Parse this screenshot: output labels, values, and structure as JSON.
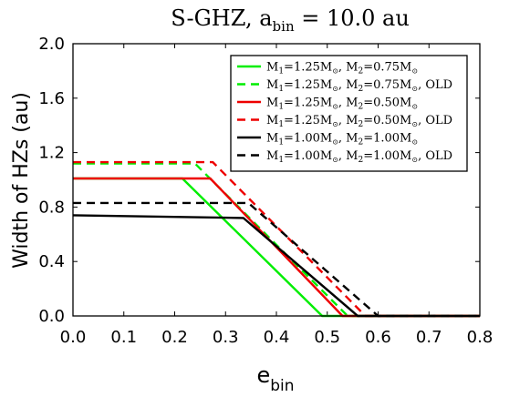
{
  "chart_data": {
    "type": "line",
    "title": "S-GHZ, a_bin = 10.0 au",
    "title_main": "S-GHZ, a",
    "title_sub": "bin",
    "title_tail": " = 10.0 au",
    "xlabel_main": "e",
    "xlabel_sub": "bin",
    "ylabel": "Width of HZs (au)",
    "xlim": [
      0,
      0.8
    ],
    "ylim": [
      0,
      2.0
    ],
    "xticks": [
      "0.0",
      "0.1",
      "0.2",
      "0.3",
      "0.4",
      "0.5",
      "0.6",
      "0.7",
      "0.8"
    ],
    "yticks": [
      "0.0",
      "0.4",
      "0.8",
      "1.2",
      "1.6",
      "2.0"
    ],
    "grid": false,
    "legend_position": "top-right",
    "series": [
      {
        "name": "M1=1.25M⊙, M2=0.75M⊙",
        "label_parts": [
          "M",
          "1",
          "=1.25M",
          "⊙",
          ", M",
          "2",
          "=0.75M",
          "⊙",
          ""
        ],
        "color": "#00ee00",
        "dash": "solid",
        "x": [
          0.0,
          0.215,
          0.49,
          0.8
        ],
        "y": [
          1.01,
          1.01,
          0.0,
          0.0
        ]
      },
      {
        "name": "M1=1.25M⊙, M2=0.75M⊙, OLD",
        "label_parts": [
          "M",
          "1",
          "=1.25M",
          "⊙",
          ", M",
          "2",
          "=0.75M",
          "⊙",
          ", OLD"
        ],
        "color": "#00ee00",
        "dash": "dashed",
        "x": [
          0.0,
          0.24,
          0.54,
          0.8
        ],
        "y": [
          1.12,
          1.12,
          0.0,
          0.0
        ]
      },
      {
        "name": "M1=1.25M⊙, M2=0.50M⊙",
        "label_parts": [
          "M",
          "1",
          "=1.25M",
          "⊙",
          ", M",
          "2",
          "=0.50M",
          "⊙",
          ""
        ],
        "color": "#ee0000",
        "dash": "solid",
        "x": [
          0.0,
          0.27,
          0.53,
          0.8
        ],
        "y": [
          1.01,
          1.01,
          0.0,
          0.0
        ]
      },
      {
        "name": "M1=1.25M⊙, M2=0.50M⊙, OLD",
        "label_parts": [
          "M",
          "1",
          "=1.25M",
          "⊙",
          ", M",
          "2",
          "=0.50M",
          "⊙",
          ", OLD"
        ],
        "color": "#ee0000",
        "dash": "dashed",
        "x": [
          0.0,
          0.275,
          0.575,
          0.8
        ],
        "y": [
          1.13,
          1.13,
          0.0,
          0.0
        ]
      },
      {
        "name": "M1=1.00M⊙, M2=1.00M⊙",
        "label_parts": [
          "M",
          "1",
          "=1.00M",
          "⊙",
          ", M",
          "2",
          "=1.00M",
          "⊙",
          ""
        ],
        "color": "#000000",
        "dash": "solid",
        "x": [
          0.0,
          0.335,
          0.56,
          0.8
        ],
        "y": [
          0.74,
          0.72,
          0.0,
          0.0
        ]
      },
      {
        "name": "M1=1.00M⊙, M2=1.00M⊙, OLD",
        "label_parts": [
          "M",
          "1",
          "=1.00M",
          "⊙",
          ", M",
          "2",
          "=1.00M",
          "⊙",
          ", OLD"
        ],
        "color": "#000000",
        "dash": "dashed",
        "x": [
          0.0,
          0.345,
          0.6,
          0.8
        ],
        "y": [
          0.83,
          0.83,
          0.0,
          0.0
        ]
      }
    ]
  }
}
